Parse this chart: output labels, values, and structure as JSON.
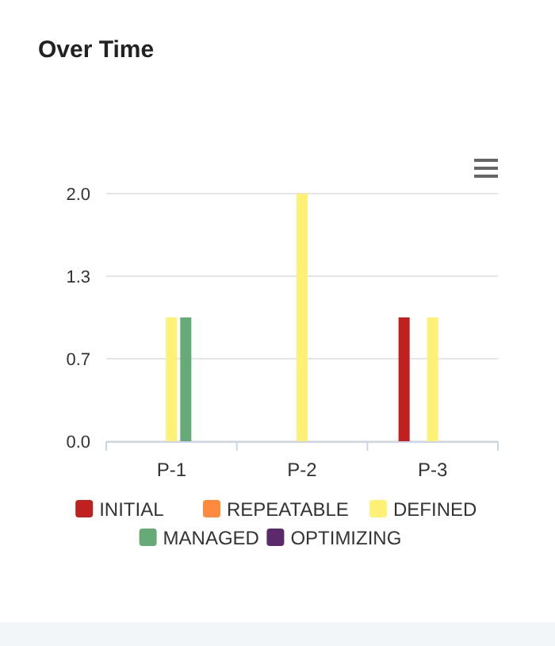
{
  "chart_data": {
    "type": "bar",
    "title": "Over Time",
    "categories": [
      "P-1",
      "P-2",
      "P-3"
    ],
    "series": [
      {
        "name": "INITIAL",
        "color": "#c0201f",
        "values": [
          0,
          0,
          1
        ]
      },
      {
        "name": "REPEATABLE",
        "color": "#ff8a3d",
        "values": [
          0,
          0,
          0
        ]
      },
      {
        "name": "DEFINED",
        "color": "#fff176",
        "values": [
          1,
          2,
          1
        ]
      },
      {
        "name": "MANAGED",
        "color": "#66aa77",
        "values": [
          1,
          0,
          0
        ]
      },
      {
        "name": "OPTIMIZING",
        "color": "#5c2a6a",
        "values": [
          0,
          0,
          0
        ]
      }
    ],
    "ylim": [
      0,
      2
    ],
    "yticks": [
      {
        "value": 0,
        "label": "0.0"
      },
      {
        "value": 0.6667,
        "label": "0.7"
      },
      {
        "value": 1.3333,
        "label": "1.3"
      },
      {
        "value": 2,
        "label": "2.0"
      }
    ],
    "grid": "y",
    "legend": "bottom"
  }
}
